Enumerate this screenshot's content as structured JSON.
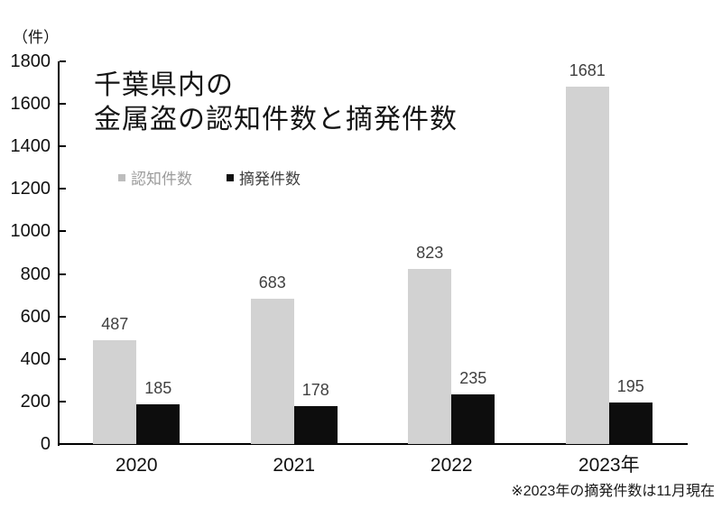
{
  "chart": {
    "unit_label": "（件）",
    "title_line1": "千葉県内の",
    "title_line2": "金属盗の認知件数と摘発件数",
    "footnote": "※2023年の摘発件数は11月現在"
  },
  "chart_data": {
    "type": "bar",
    "title": "千葉県内の金属盗の認知件数と摘発件数",
    "unit": "件",
    "categories": [
      "2020",
      "2021",
      "2022",
      "2023年"
    ],
    "series": [
      {
        "name": "認知件数",
        "color": "#d2d2d2",
        "swatch_color": "#bdbdbd",
        "legend_text_color": "#9b9b9b",
        "values": [
          487,
          683,
          823,
          1681
        ]
      },
      {
        "name": "摘発件数",
        "color": "#0d0d0d",
        "swatch_color": "#111111",
        "legend_text_color": "#3f3f3f",
        "values": [
          185,
          178,
          235,
          195
        ]
      }
    ],
    "ylim": [
      0,
      1800
    ],
    "ytick_step": 200,
    "value_label_color": "#404040",
    "axis_color": "#000000",
    "grid": false,
    "legend_position": "top-left-under-title",
    "footnote": "※2023年の摘発件数は11月現在"
  }
}
